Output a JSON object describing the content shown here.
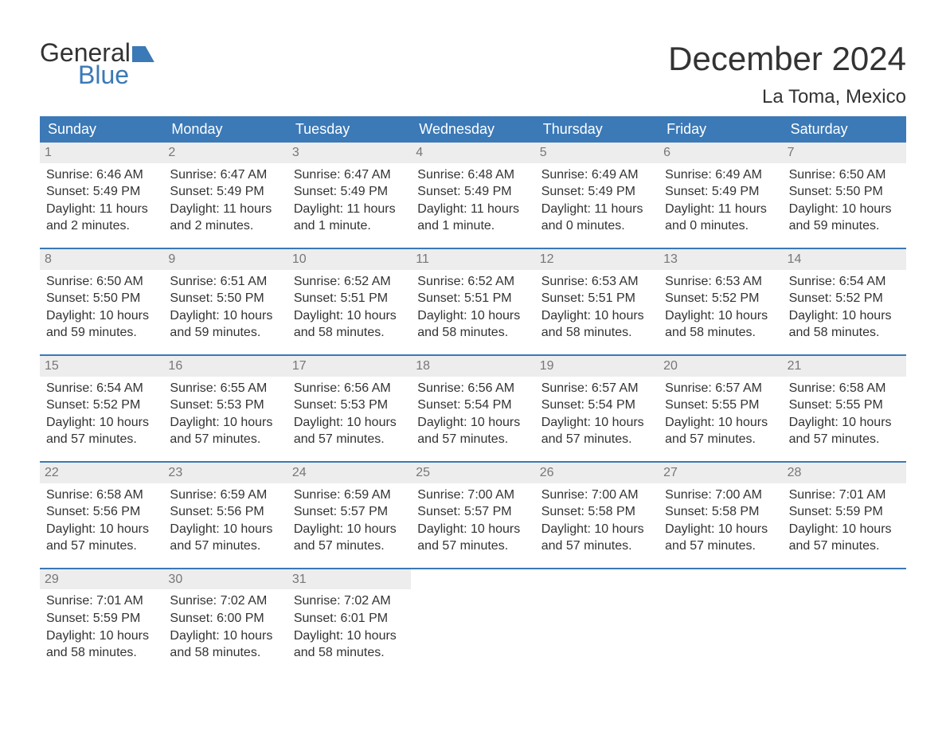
{
  "logo": {
    "word1": "General",
    "word2": "Blue"
  },
  "title": "December 2024",
  "location": "La Toma, Mexico",
  "colors": {
    "brand_blue": "#3b79b7",
    "header_bg": "#3b79b7",
    "header_text": "#ffffff",
    "daynum_bg": "#ededed",
    "daynum_text": "#777777",
    "body_text": "#333333",
    "rule": "#3b79b7",
    "page_bg": "#ffffff"
  },
  "weekdays": [
    "Sunday",
    "Monday",
    "Tuesday",
    "Wednesday",
    "Thursday",
    "Friday",
    "Saturday"
  ],
  "weeks": [
    [
      {
        "n": "1",
        "sunrise": "6:46 AM",
        "sunset": "5:49 PM",
        "daylight": "11 hours and 2 minutes."
      },
      {
        "n": "2",
        "sunrise": "6:47 AM",
        "sunset": "5:49 PM",
        "daylight": "11 hours and 2 minutes."
      },
      {
        "n": "3",
        "sunrise": "6:47 AM",
        "sunset": "5:49 PM",
        "daylight": "11 hours and 1 minute."
      },
      {
        "n": "4",
        "sunrise": "6:48 AM",
        "sunset": "5:49 PM",
        "daylight": "11 hours and 1 minute."
      },
      {
        "n": "5",
        "sunrise": "6:49 AM",
        "sunset": "5:49 PM",
        "daylight": "11 hours and 0 minutes."
      },
      {
        "n": "6",
        "sunrise": "6:49 AM",
        "sunset": "5:49 PM",
        "daylight": "11 hours and 0 minutes."
      },
      {
        "n": "7",
        "sunrise": "6:50 AM",
        "sunset": "5:50 PM",
        "daylight": "10 hours and 59 minutes."
      }
    ],
    [
      {
        "n": "8",
        "sunrise": "6:50 AM",
        "sunset": "5:50 PM",
        "daylight": "10 hours and 59 minutes."
      },
      {
        "n": "9",
        "sunrise": "6:51 AM",
        "sunset": "5:50 PM",
        "daylight": "10 hours and 59 minutes."
      },
      {
        "n": "10",
        "sunrise": "6:52 AM",
        "sunset": "5:51 PM",
        "daylight": "10 hours and 58 minutes."
      },
      {
        "n": "11",
        "sunrise": "6:52 AM",
        "sunset": "5:51 PM",
        "daylight": "10 hours and 58 minutes."
      },
      {
        "n": "12",
        "sunrise": "6:53 AM",
        "sunset": "5:51 PM",
        "daylight": "10 hours and 58 minutes."
      },
      {
        "n": "13",
        "sunrise": "6:53 AM",
        "sunset": "5:52 PM",
        "daylight": "10 hours and 58 minutes."
      },
      {
        "n": "14",
        "sunrise": "6:54 AM",
        "sunset": "5:52 PM",
        "daylight": "10 hours and 58 minutes."
      }
    ],
    [
      {
        "n": "15",
        "sunrise": "6:54 AM",
        "sunset": "5:52 PM",
        "daylight": "10 hours and 57 minutes."
      },
      {
        "n": "16",
        "sunrise": "6:55 AM",
        "sunset": "5:53 PM",
        "daylight": "10 hours and 57 minutes."
      },
      {
        "n": "17",
        "sunrise": "6:56 AM",
        "sunset": "5:53 PM",
        "daylight": "10 hours and 57 minutes."
      },
      {
        "n": "18",
        "sunrise": "6:56 AM",
        "sunset": "5:54 PM",
        "daylight": "10 hours and 57 minutes."
      },
      {
        "n": "19",
        "sunrise": "6:57 AM",
        "sunset": "5:54 PM",
        "daylight": "10 hours and 57 minutes."
      },
      {
        "n": "20",
        "sunrise": "6:57 AM",
        "sunset": "5:55 PM",
        "daylight": "10 hours and 57 minutes."
      },
      {
        "n": "21",
        "sunrise": "6:58 AM",
        "sunset": "5:55 PM",
        "daylight": "10 hours and 57 minutes."
      }
    ],
    [
      {
        "n": "22",
        "sunrise": "6:58 AM",
        "sunset": "5:56 PM",
        "daylight": "10 hours and 57 minutes."
      },
      {
        "n": "23",
        "sunrise": "6:59 AM",
        "sunset": "5:56 PM",
        "daylight": "10 hours and 57 minutes."
      },
      {
        "n": "24",
        "sunrise": "6:59 AM",
        "sunset": "5:57 PM",
        "daylight": "10 hours and 57 minutes."
      },
      {
        "n": "25",
        "sunrise": "7:00 AM",
        "sunset": "5:57 PM",
        "daylight": "10 hours and 57 minutes."
      },
      {
        "n": "26",
        "sunrise": "7:00 AM",
        "sunset": "5:58 PM",
        "daylight": "10 hours and 57 minutes."
      },
      {
        "n": "27",
        "sunrise": "7:00 AM",
        "sunset": "5:58 PM",
        "daylight": "10 hours and 57 minutes."
      },
      {
        "n": "28",
        "sunrise": "7:01 AM",
        "sunset": "5:59 PM",
        "daylight": "10 hours and 57 minutes."
      }
    ],
    [
      {
        "n": "29",
        "sunrise": "7:01 AM",
        "sunset": "5:59 PM",
        "daylight": "10 hours and 58 minutes."
      },
      {
        "n": "30",
        "sunrise": "7:02 AM",
        "sunset": "6:00 PM",
        "daylight": "10 hours and 58 minutes."
      },
      {
        "n": "31",
        "sunrise": "7:02 AM",
        "sunset": "6:01 PM",
        "daylight": "10 hours and 58 minutes."
      },
      null,
      null,
      null,
      null
    ]
  ],
  "labels": {
    "sunrise": "Sunrise: ",
    "sunset": "Sunset: ",
    "daylight": "Daylight: "
  }
}
